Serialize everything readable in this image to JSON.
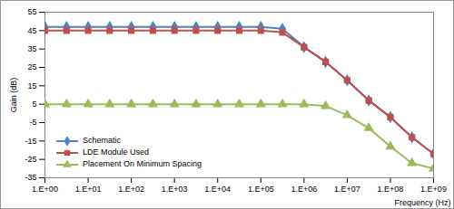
{
  "chart_data": {
    "type": "line",
    "x_label": "Frequency (Hz)",
    "y_label": "Gain (dB)",
    "log": "x",
    "grid": false,
    "legend": "lower left",
    "x": [
      1,
      3.16,
      10,
      31.6,
      100,
      316,
      1000,
      3160,
      10000,
      31600,
      100000,
      316000,
      1000000,
      3160000,
      10000000,
      31600000,
      100000000,
      316000000,
      1000000000
    ],
    "xlim": [
      1,
      1000000000
    ],
    "xticks": [
      {
        "value": 1,
        "label": "1.E+00"
      },
      {
        "value": 10,
        "label": "1.E+01"
      },
      {
        "value": 100,
        "label": "1.E+02"
      },
      {
        "value": 1000,
        "label": "1.E+03"
      },
      {
        "value": 10000,
        "label": "1.E+04"
      },
      {
        "value": 100000,
        "label": "1.E+05"
      },
      {
        "value": 1000000,
        "label": "1.E+06"
      },
      {
        "value": 10000000,
        "label": "1.E+07"
      },
      {
        "value": 100000000,
        "label": "1.E+08"
      },
      {
        "value": 1000000000,
        "label": "1.E+09"
      }
    ],
    "ylim": [
      -35,
      55
    ],
    "yticks": [
      -35,
      -25,
      -15,
      -5,
      5,
      15,
      25,
      35,
      45,
      55
    ],
    "series": [
      {
        "name": "Schematic",
        "color": "#4f81bd",
        "marker": "diamond",
        "values": [
          47,
          47,
          47,
          47,
          47,
          47,
          47,
          47,
          47,
          47,
          47,
          46,
          36,
          28,
          18,
          7,
          -2,
          -13,
          -22
        ]
      },
      {
        "name": "LDE Module Used",
        "color": "#c0504d",
        "marker": "square",
        "values": [
          45,
          45,
          45,
          45,
          45,
          45,
          45,
          45,
          45,
          45,
          45,
          44,
          36,
          28,
          18,
          7,
          -2,
          -13,
          -22
        ]
      },
      {
        "name": "Placement On Minimum Spacing",
        "color": "#9bbb59",
        "marker": "triangle",
        "values": [
          5,
          5,
          5,
          5,
          5,
          5,
          5,
          5,
          5,
          5,
          5,
          5,
          5,
          4,
          -1,
          -8,
          -18,
          -27,
          -30
        ]
      }
    ]
  }
}
